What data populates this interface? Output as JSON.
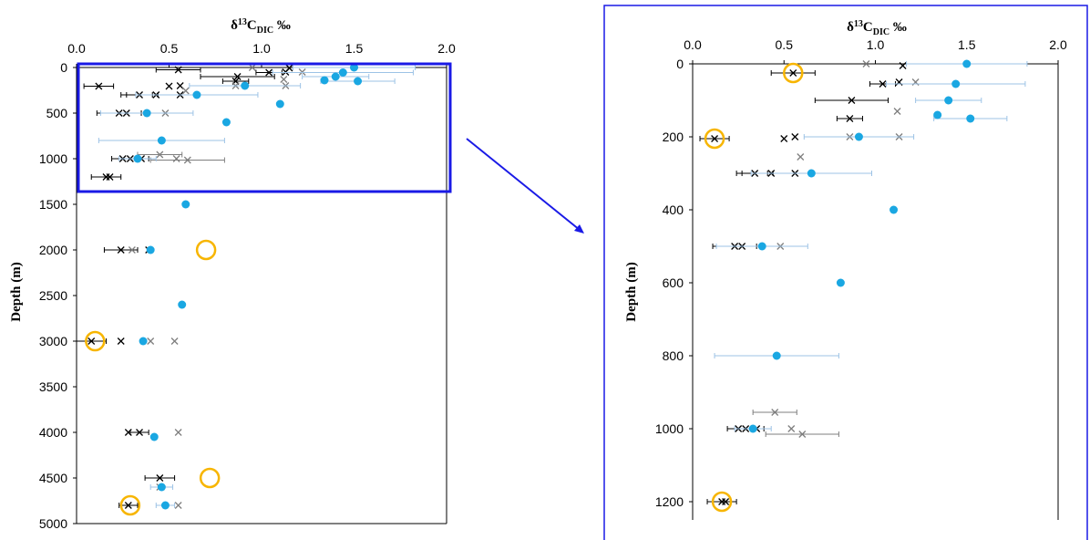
{
  "chart_data": [
    {
      "type": "scatter",
      "title_parts": {
        "delta": "δ",
        "sup": "13",
        "base": "C",
        "sub": "DIC",
        "unit": " ‰"
      },
      "xlabel": "δ13CDIC ‰",
      "ylabel": "Depth (m)",
      "x_ticks": [
        "0.0",
        "0.5",
        "1.0",
        "1.5",
        "2.0"
      ],
      "y_ticks": [
        "0",
        "500",
        "1000",
        "1500",
        "2000",
        "2500",
        "3000",
        "3500",
        "4000",
        "4500",
        "5000"
      ],
      "xlim": [
        0,
        2
      ],
      "ylim": [
        0,
        5000
      ],
      "y_reversed": true,
      "series": [
        {
          "marker": "black-x",
          "points": [
            [
              0.55,
              25
            ],
            [
              1.15,
              5
            ],
            [
              1.04,
              55
            ],
            [
              1.13,
              50
            ],
            [
              0.87,
              100
            ],
            [
              0.86,
              150
            ],
            [
              0.56,
              200
            ],
            [
              0.12,
              205
            ],
            [
              0.5,
              205
            ],
            [
              0.34,
              300
            ],
            [
              0.43,
              300
            ],
            [
              0.56,
              300
            ],
            [
              0.23,
              500
            ],
            [
              0.27,
              500
            ],
            [
              0.29,
              1000
            ],
            [
              0.25,
              1000
            ],
            [
              0.35,
              1000
            ],
            [
              0.16,
              1200
            ],
            [
              0.18,
              1200
            ],
            [
              0.24,
              2000
            ],
            [
              0.39,
              2000
            ],
            [
              0.08,
              3000
            ],
            [
              0.24,
              3000
            ],
            [
              0.34,
              4000
            ],
            [
              0.28,
              4000
            ],
            [
              0.45,
              4500
            ],
            [
              0.28,
              4800
            ]
          ],
          "errors": [
            [
              0.12,
              25
            ],
            [
              0.07,
              55
            ],
            [
              0.2,
              100
            ],
            [
              0.07,
              150
            ],
            [
              0.08,
              205
            ],
            [
              0.07,
              300
            ],
            [
              0.1,
              300
            ],
            [
              0.12,
              500
            ],
            [
              0.1,
              1000
            ],
            [
              0.08,
              1200
            ],
            [
              0.09,
              2000
            ],
            [
              0.08,
              3000
            ],
            [
              0.05,
              4000
            ],
            [
              0.08,
              4500
            ],
            [
              0.05,
              4800
            ]
          ]
        },
        {
          "marker": "gray-x",
          "points": [
            [
              0.95,
              0
            ],
            [
              1.22,
              50
            ],
            [
              0.86,
              200
            ],
            [
              1.12,
              130
            ],
            [
              1.13,
              200
            ],
            [
              0.59,
              255
            ],
            [
              0.48,
              500
            ],
            [
              0.45,
              955
            ],
            [
              0.54,
              1000
            ],
            [
              0.6,
              1015
            ],
            [
              0.3,
              2000
            ],
            [
              0.4,
              3000
            ],
            [
              0.53,
              3000
            ],
            [
              0.55,
              4000
            ],
            [
              0.45,
              4600
            ],
            [
              0.55,
              4800
            ]
          ],
          "errors": [
            [
              0.12,
              955
            ],
            [
              0.2,
              1015
            ]
          ]
        },
        {
          "marker": "blue-dot",
          "points": [
            [
              1.5,
              0
            ],
            [
              1.44,
              55
            ],
            [
              1.34,
              140
            ],
            [
              1.4,
              100
            ],
            [
              1.52,
              150
            ],
            [
              0.91,
              200
            ],
            [
              0.65,
              300
            ],
            [
              1.1,
              400
            ],
            [
              0.38,
              500
            ],
            [
              0.81,
              600
            ],
            [
              0.46,
              800
            ],
            [
              0.33,
              1000
            ],
            [
              0.59,
              1500
            ],
            [
              0.4,
              2000
            ],
            [
              0.57,
              2600
            ],
            [
              0.36,
              3000
            ],
            [
              0.42,
              4050
            ],
            [
              0.46,
              4600
            ],
            [
              0.48,
              4800
            ]
          ],
          "errors": [
            [
              0.33,
              0
            ],
            [
              0.38,
              55
            ],
            [
              0.18,
              100
            ],
            [
              0.2,
              150
            ],
            [
              0.3,
              200
            ],
            [
              0.33,
              300
            ],
            [
              0.25,
              500
            ],
            [
              0.34,
              800
            ],
            [
              0.1,
              1000
            ],
            [
              0.06,
              4600
            ],
            [
              0.05,
              4800
            ]
          ]
        }
      ],
      "highlighted": [
        [
          0.7,
          2000
        ],
        [
          0.1,
          3000
        ],
        [
          0.72,
          4500
        ],
        [
          0.29,
          4800
        ]
      ],
      "highlight_color": "#f7b500",
      "box_range": {
        "x": [
          0,
          2
        ],
        "y": [
          0,
          1300
        ]
      },
      "colors": {
        "black": "#000000",
        "gray": "#7f7f7f",
        "blue": "#1aa7e2",
        "error_blue": "#9dc3e6",
        "box": "#1a1ae6"
      }
    },
    {
      "type": "scatter",
      "title_parts": {
        "delta": "δ",
        "sup": "13",
        "base": "C",
        "sub": "DIC",
        "unit": " ‰"
      },
      "xlabel": "δ13CDIC ‰",
      "ylabel": "Depth (m)",
      "x_ticks": [
        "0.0",
        "0.5",
        "1.0",
        "1.5",
        "2.0"
      ],
      "y_ticks": [
        "0",
        "200",
        "400",
        "600",
        "800",
        "1000",
        "1200"
      ],
      "xlim": [
        0,
        2
      ],
      "ylim": [
        0,
        1250
      ],
      "y_reversed": true,
      "highlighted": [
        [
          0.55,
          25
        ],
        [
          0.12,
          205
        ],
        [
          0.16,
          1200
        ]
      ],
      "note": "zoomed view of top box"
    }
  ]
}
